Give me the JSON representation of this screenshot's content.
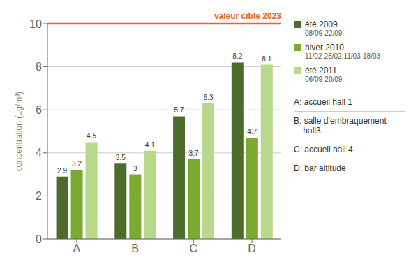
{
  "chart_data": {
    "type": "bar",
    "categories": [
      "A",
      "B",
      "C",
      "D"
    ],
    "series": [
      {
        "name": "été 2009",
        "sublabel": "08/09-22/09",
        "color": "#4d6b2a",
        "values": [
          2.9,
          3.5,
          5.7,
          8.2
        ]
      },
      {
        "name": "hiver 2010",
        "sublabel": "11/02-25/02;11/03-18/03",
        "color": "#7aab2e",
        "values": [
          3.2,
          3.0,
          3.7,
          4.7
        ]
      },
      {
        "name": "été 2011",
        "sublabel": "06/09-20/09",
        "color": "#b8d98b",
        "values": [
          4.5,
          4.1,
          6.3,
          8.1
        ]
      }
    ],
    "ylabel": "concentration (µg/m³)",
    "ylim": [
      0,
      10
    ],
    "yticks": [
      0,
      2,
      4,
      6,
      8,
      10
    ],
    "grid": true,
    "data_labels": true,
    "legend": "right",
    "reference_line": {
      "value": 10,
      "label": "valeur cible 2023",
      "color": "#e8622a"
    },
    "notes": [
      "A: accueil hall 1",
      "B: salle d’embraquement\n    hall3",
      "C: accueil hall 4",
      "D: bar altitude"
    ]
  }
}
